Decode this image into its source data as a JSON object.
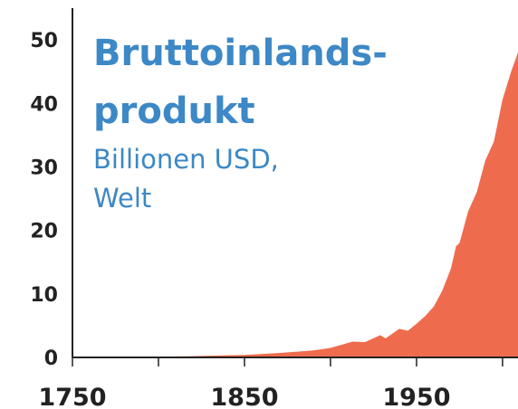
{
  "chart_data": {
    "type": "area",
    "title": [
      "Bruttoinlands-",
      "produkt"
    ],
    "subtitle": [
      "Billionen USD,",
      "Welt"
    ],
    "x": [
      1750,
      1800,
      1820,
      1850,
      1870,
      1890,
      1900,
      1913,
      1920,
      1929,
      1932,
      1940,
      1945,
      1950,
      1955,
      1960,
      1965,
      1970,
      1973,
      1975,
      1980,
      1985,
      1990,
      1995,
      2000,
      2005,
      2009
    ],
    "values": [
      0,
      0.1,
      0.2,
      0.4,
      0.7,
      1.1,
      1.5,
      2.5,
      2.4,
      3.5,
      3.0,
      4.5,
      4.2,
      5.3,
      6.5,
      8,
      10.5,
      14,
      17.5,
      18,
      23,
      26,
      31,
      34,
      40.6,
      45,
      48
    ],
    "color": "#ee6c4d",
    "xlim": [
      1750,
      2009
    ],
    "xticks": [
      1750,
      1850,
      1950
    ],
    "xminor_ticks": [
      1800,
      1900,
      2000
    ],
    "ylim": [
      0,
      55
    ],
    "yticks": [
      0,
      10,
      20,
      30,
      40,
      50
    ]
  }
}
